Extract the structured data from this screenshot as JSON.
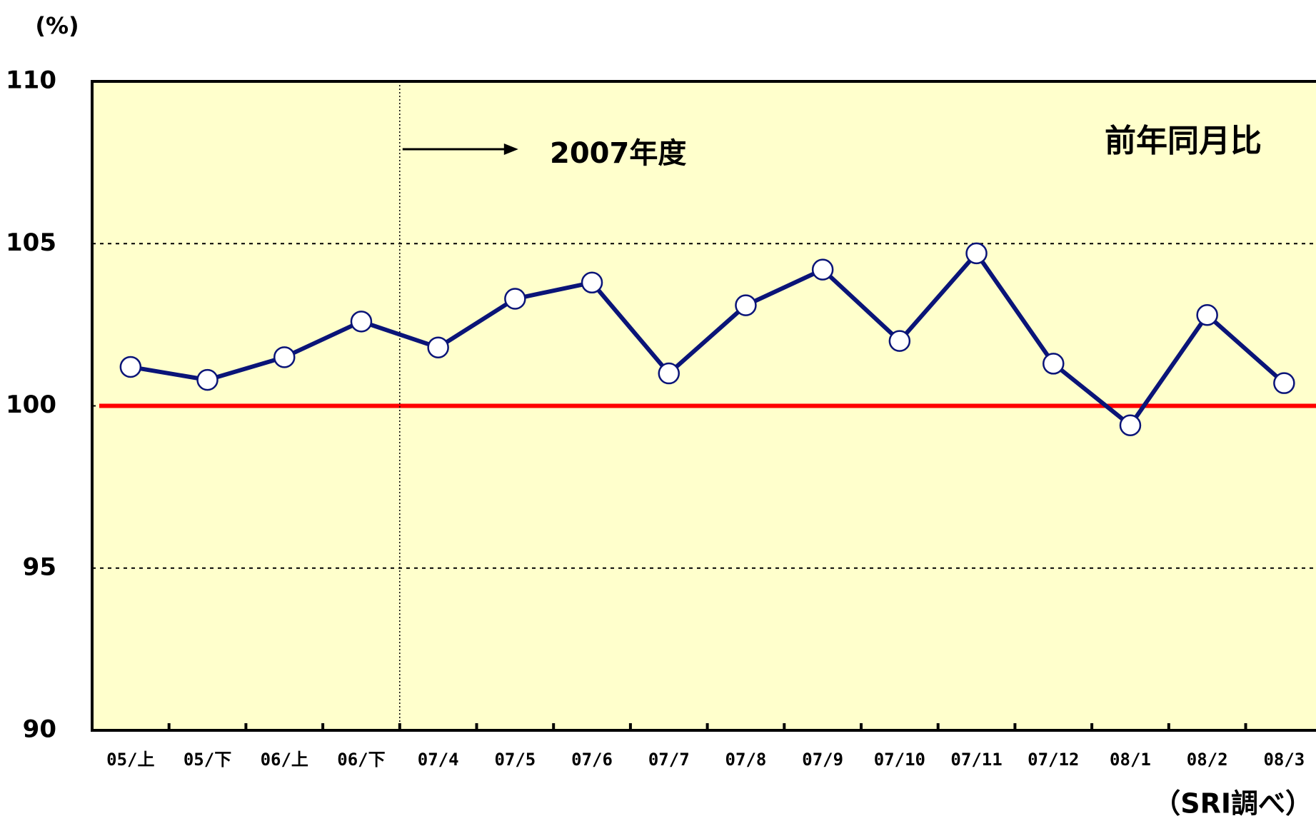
{
  "chart_data": {
    "type": "line",
    "y_unit_label": "(%)",
    "series_label": "前年同月比",
    "period_annotation": "2007年度",
    "source": "（SRI調べ）",
    "categories": [
      "05/上",
      "05/下",
      "06/上",
      "06/下",
      "07/4",
      "07/5",
      "07/6",
      "07/7",
      "07/8",
      "07/9",
      "07/10",
      "07/11",
      "07/12",
      "08/1",
      "08/2",
      "08/3"
    ],
    "series": [
      {
        "name": "前年同月比",
        "color": "#0a1478",
        "values": [
          101.2,
          100.8,
          101.5,
          102.6,
          101.8,
          103.3,
          103.8,
          101.0,
          103.1,
          104.2,
          102.0,
          104.7,
          101.3,
          99.4,
          102.8,
          100.7
        ]
      }
    ],
    "ylim": [
      90,
      110
    ],
    "yticks": [
      90,
      95,
      100,
      105,
      110
    ],
    "grid": true,
    "reference_line": {
      "value": 100,
      "color": "#ff0000"
    },
    "background": "#ffffcc"
  }
}
